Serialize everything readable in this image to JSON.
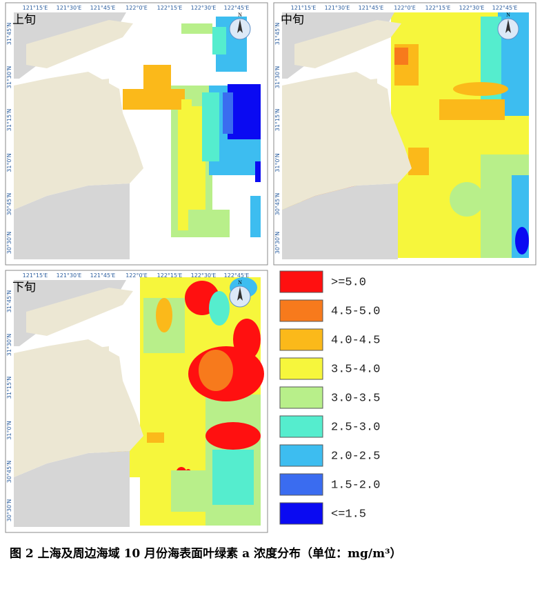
{
  "panels": [
    {
      "label": "上旬"
    },
    {
      "label": "中旬"
    },
    {
      "label": "下旬"
    }
  ],
  "lon_labels": [
    "121°15'E",
    "121°30'E",
    "121°45'E",
    "122°0'E",
    "122°15'E",
    "122°30'E",
    "122°45'E"
  ],
  "lat_labels": [
    "31°45'N",
    "31°30'N",
    "31°15'N",
    "31°0'N",
    "30°45'N",
    "30°30'N"
  ],
  "north": "N",
  "legend": [
    {
      "label": ">=5.0",
      "color": "#ff1010"
    },
    {
      "label": "4.5-5.0",
      "color": "#f77a1c"
    },
    {
      "label": "4.0-4.5",
      "color": "#fbb91a"
    },
    {
      "label": "3.5-4.0",
      "color": "#f6f63c"
    },
    {
      "label": "3.0-3.5",
      "color": "#b8ef8a"
    },
    {
      "label": "2.5-3.0",
      "color": "#55edce"
    },
    {
      "label": "2.0-2.5",
      "color": "#3dbdf0"
    },
    {
      "label": "1.5-2.0",
      "color": "#3a6cf0"
    },
    {
      "label": "<=1.5",
      "color": "#0a0af2"
    }
  ],
  "caption": "图 2  上海及周边海域 10 月份海表面叶绿素 a 浓度分布（单位：mg/m³）"
}
